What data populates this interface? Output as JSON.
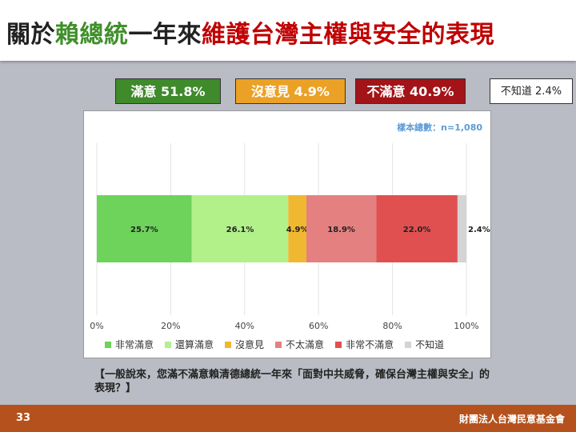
{
  "header": {
    "title_part1": "關於",
    "title_part2": "賴總統",
    "title_part3": "一年來",
    "title_part4": "維護台灣主權與安全的表現"
  },
  "summary": {
    "satisfied": "滿意 51.8%",
    "neutral": "沒意見 4.9%",
    "dissatisfied": "不滿意 40.9%",
    "dont_know": "不知道 2.4%"
  },
  "sample_text": "樣本總數：n=1,080",
  "question": "【一般說來，您滿不滿意賴清德總統一年來「面對中共威脅，確保台灣主權與安全」的表現？】",
  "footer": {
    "page_number": "33",
    "organization": "財團法人台灣民意基金會"
  },
  "colors": {
    "very_satisfied": "#6dd35b",
    "somewhat_satisfied": "#b2f08a",
    "no_opinion": "#f0b830",
    "not_very_satisfied": "#e58080",
    "very_dissatisfied": "#e05050",
    "dont_know": "#d4d4d4"
  },
  "chart_data": {
    "type": "bar",
    "orientation": "horizontal-stacked",
    "xlim": [
      0,
      100
    ],
    "x_ticks": [
      "0%",
      "20%",
      "40%",
      "60%",
      "80%",
      "100%"
    ],
    "grid": true,
    "legend_position": "bottom",
    "series": [
      {
        "name": "非常滿意",
        "value": 25.7,
        "label": "25.7%"
      },
      {
        "name": "還算滿意",
        "value": 26.1,
        "label": "26.1%"
      },
      {
        "name": "沒意見",
        "value": 4.9,
        "label": "4.9%"
      },
      {
        "name": "不太滿意",
        "value": 18.9,
        "label": "18.9%"
      },
      {
        "name": "非常不滿意",
        "value": 22.0,
        "label": "22.0%"
      },
      {
        "name": "不知道",
        "value": 2.4,
        "label": "2.4%"
      }
    ]
  }
}
